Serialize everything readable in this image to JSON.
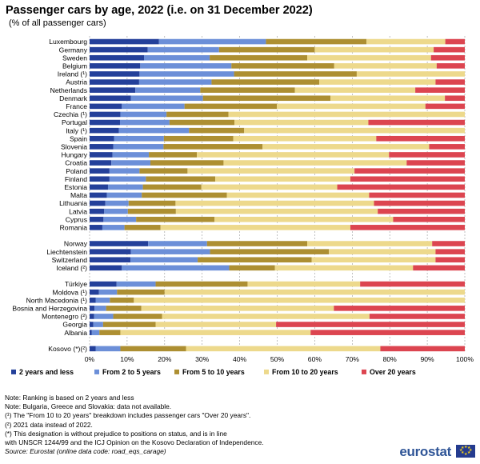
{
  "title": "Passenger cars by age, 2022 (i.e. on 31 December 2022)",
  "subtitle": "(% of all passenger cars)",
  "colors": {
    "2 years and less": "#24409a",
    "From 2 to 5 years": "#6c8fd8",
    "From 5 to 10 years": "#ad8f32",
    "From 10 to 20 years": "#edd98c",
    "Over 20 years": "#dc4550"
  },
  "chart_data": {
    "type": "bar",
    "orientation": "horizontal",
    "stacked": true,
    "xlim": [
      0,
      100
    ],
    "x_ticks": [
      "0%",
      "10%",
      "20%",
      "30%",
      "40%",
      "50%",
      "60%",
      "70%",
      "80%",
      "90%",
      "100%"
    ],
    "grid": "vertical dashed",
    "legend_position": "bottom",
    "groups": [
      [
        "Luxembourg",
        "Germany",
        "Sweden",
        "Belgium",
        "Ireland (¹)",
        "Austria",
        "Netherlands",
        "Denmark",
        "France",
        "Czechia (¹)",
        "Portugal",
        "Italy (¹)",
        "Spain",
        "Slovenia",
        "Hungary",
        "Croatia",
        "Poland",
        "Finland",
        "Estonia",
        "Malta",
        "Lithuania",
        "Latvia",
        "Cyprus",
        "Romania"
      ],
      [
        "Norway",
        "Liechtenstein",
        "Switzerland",
        "Iceland (²)"
      ],
      [
        "Türkiye",
        "Moldova (¹)",
        "North Macedonia (¹)",
        "Bosnia and Herzegovina",
        "Montenegro (²)",
        "Georgia",
        "Albania"
      ],
      [
        "Kosovo (*)(²)"
      ]
    ],
    "series": [
      {
        "name": "2 years and less",
        "values": [
          18.5,
          15.5,
          14.5,
          13.5,
          13.3,
          13.2,
          12.2,
          11.0,
          8.6,
          8.2,
          8.1,
          7.8,
          6.5,
          6.3,
          6.1,
          5.8,
          5.3,
          5.3,
          4.9,
          4.6,
          4.2,
          3.9,
          3.7,
          3.4,
          15.6,
          11.0,
          10.9,
          8.6,
          7.2,
          2.5,
          1.6,
          1.3,
          1.2,
          1.0,
          0.6,
          1.6
        ]
      },
      {
        "name": "From 2 to 5 years",
        "values": [
          28.5,
          19.0,
          17.5,
          24.3,
          25.2,
          19.3,
          17.3,
          19.2,
          16.7,
          12.3,
          13.2,
          18.7,
          13.3,
          13.4,
          9.7,
          10.4,
          8.0,
          9.7,
          9.3,
          9.3,
          6.2,
          6.3,
          8.7,
          5.9,
          15.7,
          21.1,
          17.9,
          28.6,
          10.4,
          4.8,
          3.8,
          3.1,
          5.1,
          2.6,
          2.0,
          6.6
        ]
      },
      {
        "name": "From 5 to 10 years",
        "values": [
          26.8,
          25.5,
          26.0,
          27.4,
          32.7,
          28.7,
          25.2,
          34.0,
          24.6,
          16.5,
          17.3,
          14.7,
          18.5,
          26.4,
          12.8,
          19.5,
          12.8,
          18.5,
          15.6,
          22.7,
          12.5,
          12.8,
          20.9,
          9.6,
          26.7,
          31.7,
          30.4,
          12.2,
          24.5,
          12.7,
          6.4,
          9.4,
          13.0,
          14.0,
          5.6,
          17.5
        ]
      },
      {
        "name": "From 10 to 20 years",
        "values": [
          21.0,
          31.7,
          33.0,
          27.3,
          28.8,
          31.0,
          32.1,
          30.5,
          39.6,
          63.0,
          35.7,
          58.8,
          38.1,
          44.4,
          51.2,
          48.8,
          44.5,
          36.0,
          36.2,
          37.9,
          52.9,
          53.8,
          47.6,
          50.6,
          33.3,
          28.4,
          33.0,
          36.8,
          30.0,
          80.0,
          88.2,
          51.3,
          55.3,
          32.1,
          50.7,
          51.8
        ]
      },
      {
        "name": "Over 20 years",
        "values": [
          5.2,
          8.3,
          9.0,
          7.5,
          0.0,
          7.8,
          13.2,
          5.3,
          10.5,
          0.0,
          25.7,
          0.0,
          23.6,
          9.5,
          20.2,
          15.5,
          29.4,
          30.5,
          34.0,
          25.5,
          24.2,
          23.2,
          19.1,
          30.5,
          8.7,
          7.8,
          7.8,
          13.8,
          27.9,
          0.0,
          0.0,
          34.9,
          25.4,
          50.3,
          41.1,
          22.5
        ]
      }
    ]
  },
  "notes": [
    "Note: Ranking is based on 2 years and less",
    "Note: Bulgaria, Greece and Slovakia: data not available.",
    "(¹) The \"From 10 to 20 years\" breakdown includes passenger cars \"Over 20 years\".",
    "(²) 2021 data instead of 2022.",
    "(*) This designation is without prejudice to positions on status, and is in line",
    "with UNSCR 1244/99 and the ICJ Opinion on the Kosovo Declaration of Independence."
  ],
  "source": "Source: Eurostat (online data code: road_eqs_carage)",
  "logo": "eurostat"
}
